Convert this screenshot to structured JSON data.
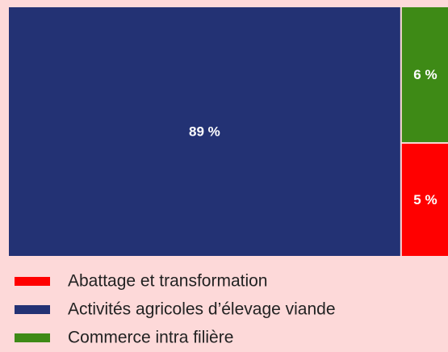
{
  "chart_data": {
    "type": "treemap",
    "series": [
      {
        "name": "Abattage et transformation",
        "color": "#ff0000",
        "values": [
          5
        ],
        "value_labels": [
          "5 %"
        ]
      },
      {
        "name": "Activités agricoles d’élevage viande",
        "color": "#233274",
        "values": [
          89
        ],
        "value_labels": [
          "89 %"
        ]
      },
      {
        "name": "Commerce intra filière",
        "color": "#3e8a16",
        "values": [
          6
        ],
        "value_labels": [
          "6 %"
        ]
      }
    ]
  }
}
